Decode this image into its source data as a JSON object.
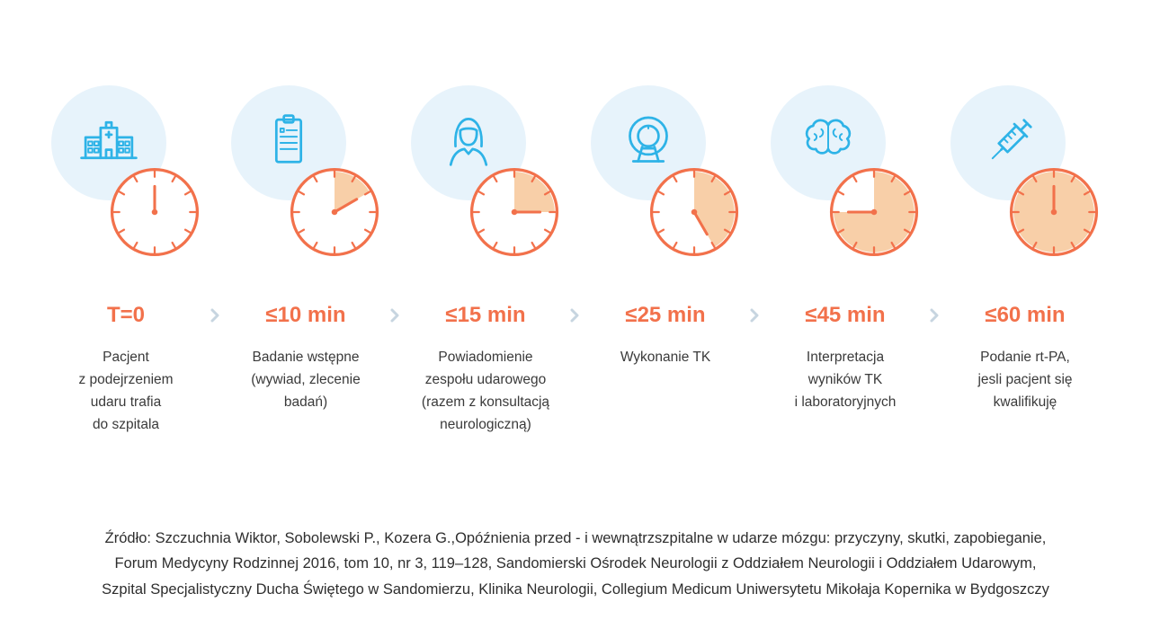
{
  "stages": [
    {
      "icon": "hospital",
      "time_label": "T=0",
      "clock_minutes": 0,
      "description": "Pacjent\nz podejrzeniem\nudaru trafia\ndo szpitala"
    },
    {
      "icon": "clipboard",
      "time_label": "≤10 min",
      "clock_minutes": 10,
      "description": "Badanie wstępne\n(wywiad, zlecenie\nbadań)"
    },
    {
      "icon": "nurse",
      "time_label": "≤15 min",
      "clock_minutes": 15,
      "description": "Powiadomienie\nzespołu udarowego\n(razem z konsultacją\nneurologiczną)"
    },
    {
      "icon": "ct-scanner",
      "time_label": "≤25 min",
      "clock_minutes": 25,
      "description": "Wykonanie TK"
    },
    {
      "icon": "brain",
      "time_label": "≤45 min",
      "clock_minutes": 45,
      "description": "Interpretacja\nwyników TK\ni laboratoryjnych"
    },
    {
      "icon": "syringe",
      "time_label": "≤60 min",
      "clock_minutes": 60,
      "description": "Podanie rt-PA,\njesli pacjent się\nkwalifikuję"
    }
  ],
  "source_text": "Źródło: Szczuchnia Wiktor, Sobolewski P., Kozera G.,Opóźnienia przed - i wewnątrzszpitalne w udarze mózgu: przyczyny, skutki, zapobieganie,\nForum Medycyny Rodzinnej 2016, tom 10, nr 3, 119–128, Sandomierski Ośrodek Neurologii z Oddziałem Neurologii i Oddziałem Udarowym,\nSzpital Specjalistyczny Ducha Świętego w Sandomierzu, Klinika Neurologii, Collegium Medicum Uniwersytetu Mikołaja Kopernika w Bydgoszczy",
  "colors": {
    "accent_orange": "#f2714b",
    "fill_orange": "#f8cfa8",
    "icon_blue": "#2eb3e7",
    "halo_blue": "#e7f3fb",
    "chevron_gray": "#c7d5e0"
  }
}
